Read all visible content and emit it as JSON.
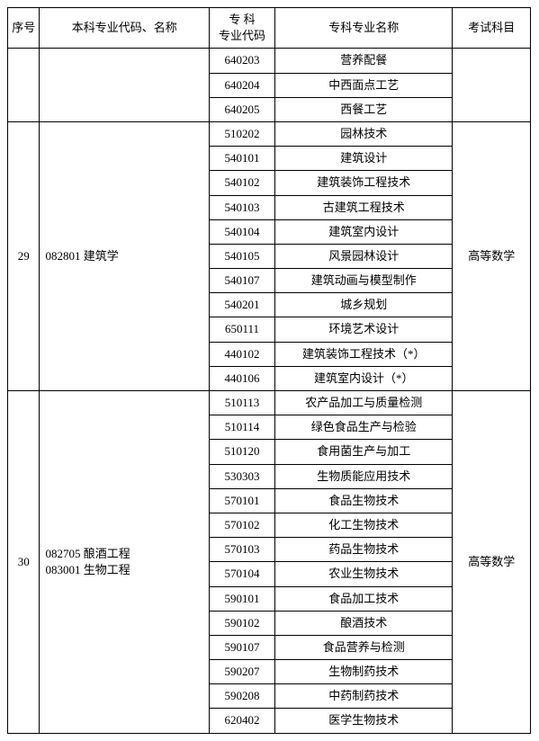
{
  "headers": {
    "seq": "序号",
    "major": "本科专业代码、名称",
    "code": "专 科\n专业代码",
    "name": "专科专业名称",
    "subject": "考试科目"
  },
  "group0": {
    "rows": [
      {
        "code": "640203",
        "name": "营养配餐"
      },
      {
        "code": "640204",
        "name": "中西面点工艺"
      },
      {
        "code": "640205",
        "name": "西餐工艺"
      }
    ]
  },
  "group1": {
    "seq": "29",
    "major": "082801  建筑学",
    "subject": "高等数学",
    "rows": [
      {
        "code": "510202",
        "name": "园林技术"
      },
      {
        "code": "540101",
        "name": "建筑设计"
      },
      {
        "code": "540102",
        "name": "建筑装饰工程技术"
      },
      {
        "code": "540103",
        "name": "古建筑工程技术"
      },
      {
        "code": "540104",
        "name": "建筑室内设计"
      },
      {
        "code": "540105",
        "name": "风景园林设计"
      },
      {
        "code": "540107",
        "name": "建筑动画与模型制作"
      },
      {
        "code": "540201",
        "name": "城乡规划"
      },
      {
        "code": "650111",
        "name": "环境艺术设计"
      },
      {
        "code": "440102",
        "name": "建筑装饰工程技术（*）"
      },
      {
        "code": "440106",
        "name": "建筑室内设计（*）"
      }
    ]
  },
  "group2": {
    "seq": "30",
    "major": "082705  酿酒工程\n083001  生物工程",
    "subject": "高等数学",
    "rows": [
      {
        "code": "510113",
        "name": "农产品加工与质量检测"
      },
      {
        "code": "510114",
        "name": "绿色食品生产与检验"
      },
      {
        "code": "510120",
        "name": "食用菌生产与加工"
      },
      {
        "code": "530303",
        "name": "生物质能应用技术"
      },
      {
        "code": "570101",
        "name": "食品生物技术"
      },
      {
        "code": "570102",
        "name": "化工生物技术"
      },
      {
        "code": "570103",
        "name": "药品生物技术"
      },
      {
        "code": "570104",
        "name": "农业生物技术"
      },
      {
        "code": "590101",
        "name": "食品加工技术"
      },
      {
        "code": "590102",
        "name": "酿酒技术"
      },
      {
        "code": "590107",
        "name": "食品营养与检测"
      },
      {
        "code": "590207",
        "name": "生物制药技术"
      },
      {
        "code": "590208",
        "name": "中药制药技术"
      },
      {
        "code": "620402",
        "name": "医学生物技术"
      }
    ]
  }
}
